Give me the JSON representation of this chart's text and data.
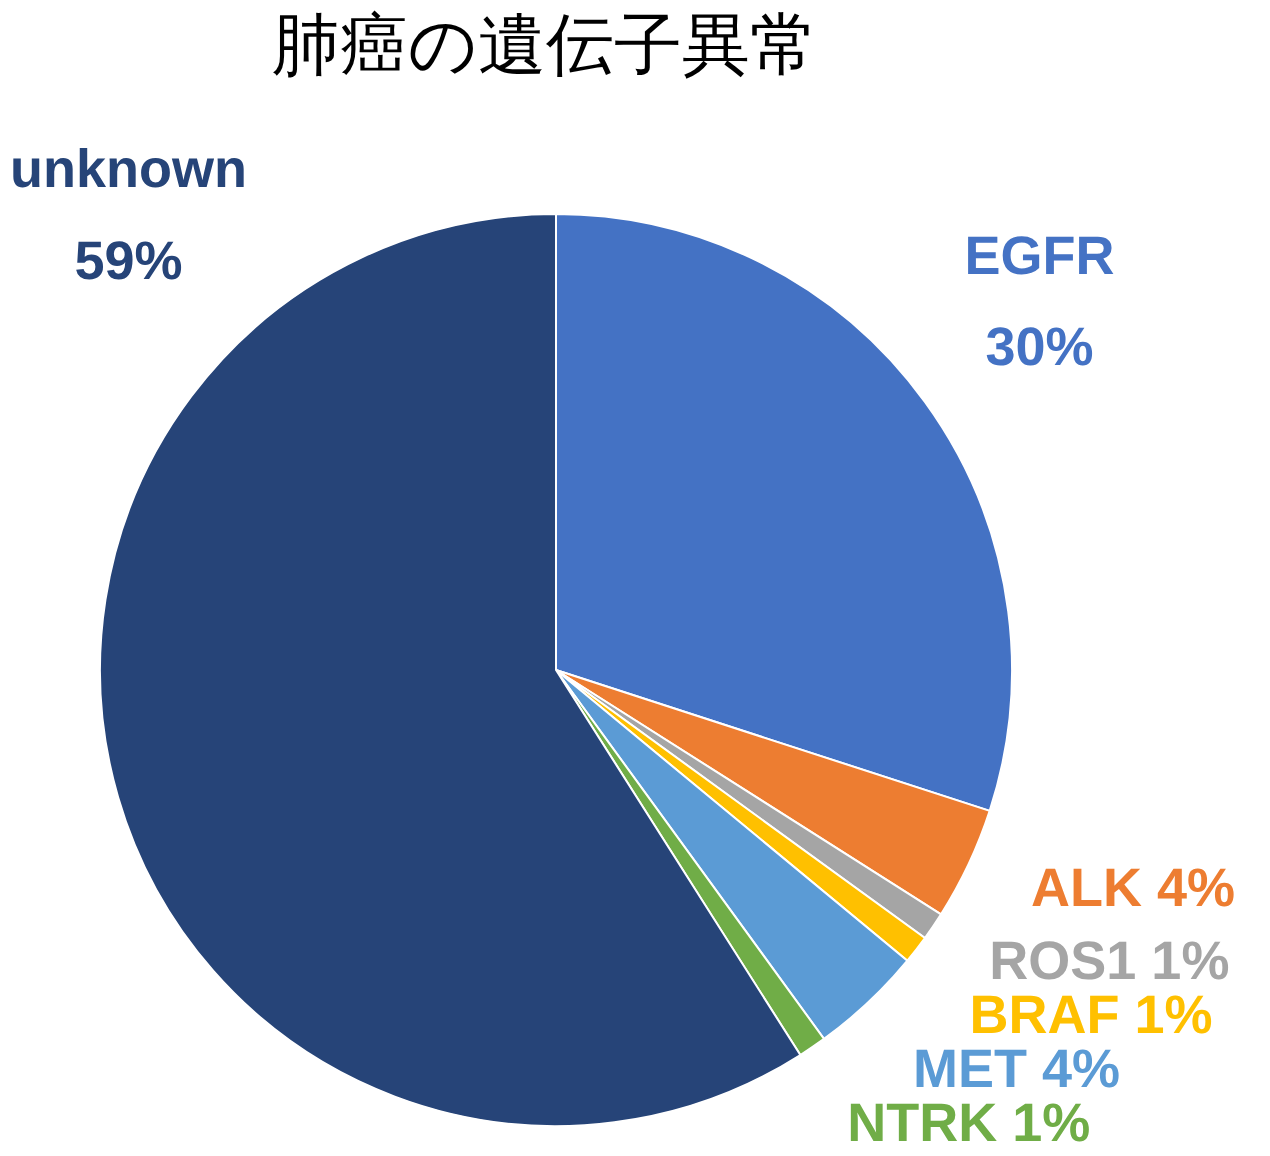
{
  "chart_data": {
    "type": "pie",
    "title": "肺癌の遺伝子異常",
    "categories": [
      "EGFR",
      "ALK",
      "ROS1",
      "BRAF",
      "MET",
      "NTRK",
      "unknown"
    ],
    "values": [
      30,
      4,
      1,
      1,
      4,
      1,
      59
    ],
    "colors": [
      "#4472c4",
      "#ed7d31",
      "#a5a5a5",
      "#ffc000",
      "#5b9bd5",
      "#70ad47",
      "#264478"
    ],
    "value_labels": [
      "30%",
      "4%",
      "1%",
      "1%",
      "4%",
      "1%",
      "59%"
    ],
    "legend": false
  }
}
